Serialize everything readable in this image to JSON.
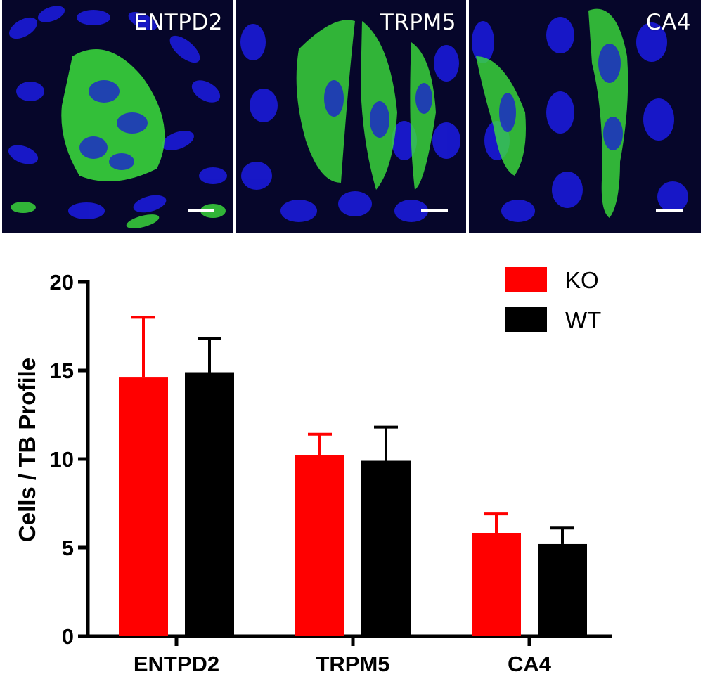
{
  "panels": [
    {
      "label": "ENTPD2"
    },
    {
      "label": "TRPM5"
    },
    {
      "label": "CA4"
    }
  ],
  "colors": {
    "ko": "#ff0000",
    "wt": "#000000",
    "nuclei": "#1a1ad8",
    "stain": "#3ce03c",
    "background": "#06062a"
  },
  "chart_data": {
    "type": "bar",
    "categories": [
      "ENTPD2",
      "TRPM5",
      "CA4"
    ],
    "series": [
      {
        "name": "KO",
        "values": [
          14.6,
          10.2,
          5.8
        ],
        "errors": [
          3.4,
          1.2,
          1.1
        ],
        "color": "#ff0000"
      },
      {
        "name": "WT",
        "values": [
          14.9,
          9.9,
          5.2
        ],
        "errors": [
          1.9,
          1.9,
          0.9
        ],
        "color": "#000000"
      }
    ],
    "ylabel": "Cells / TB Profile",
    "xlabel": "",
    "ylim": [
      0,
      20
    ],
    "yticks": [
      "0",
      "5",
      "10",
      "15",
      "20"
    ],
    "legend_position": "top-right",
    "grid": false
  }
}
